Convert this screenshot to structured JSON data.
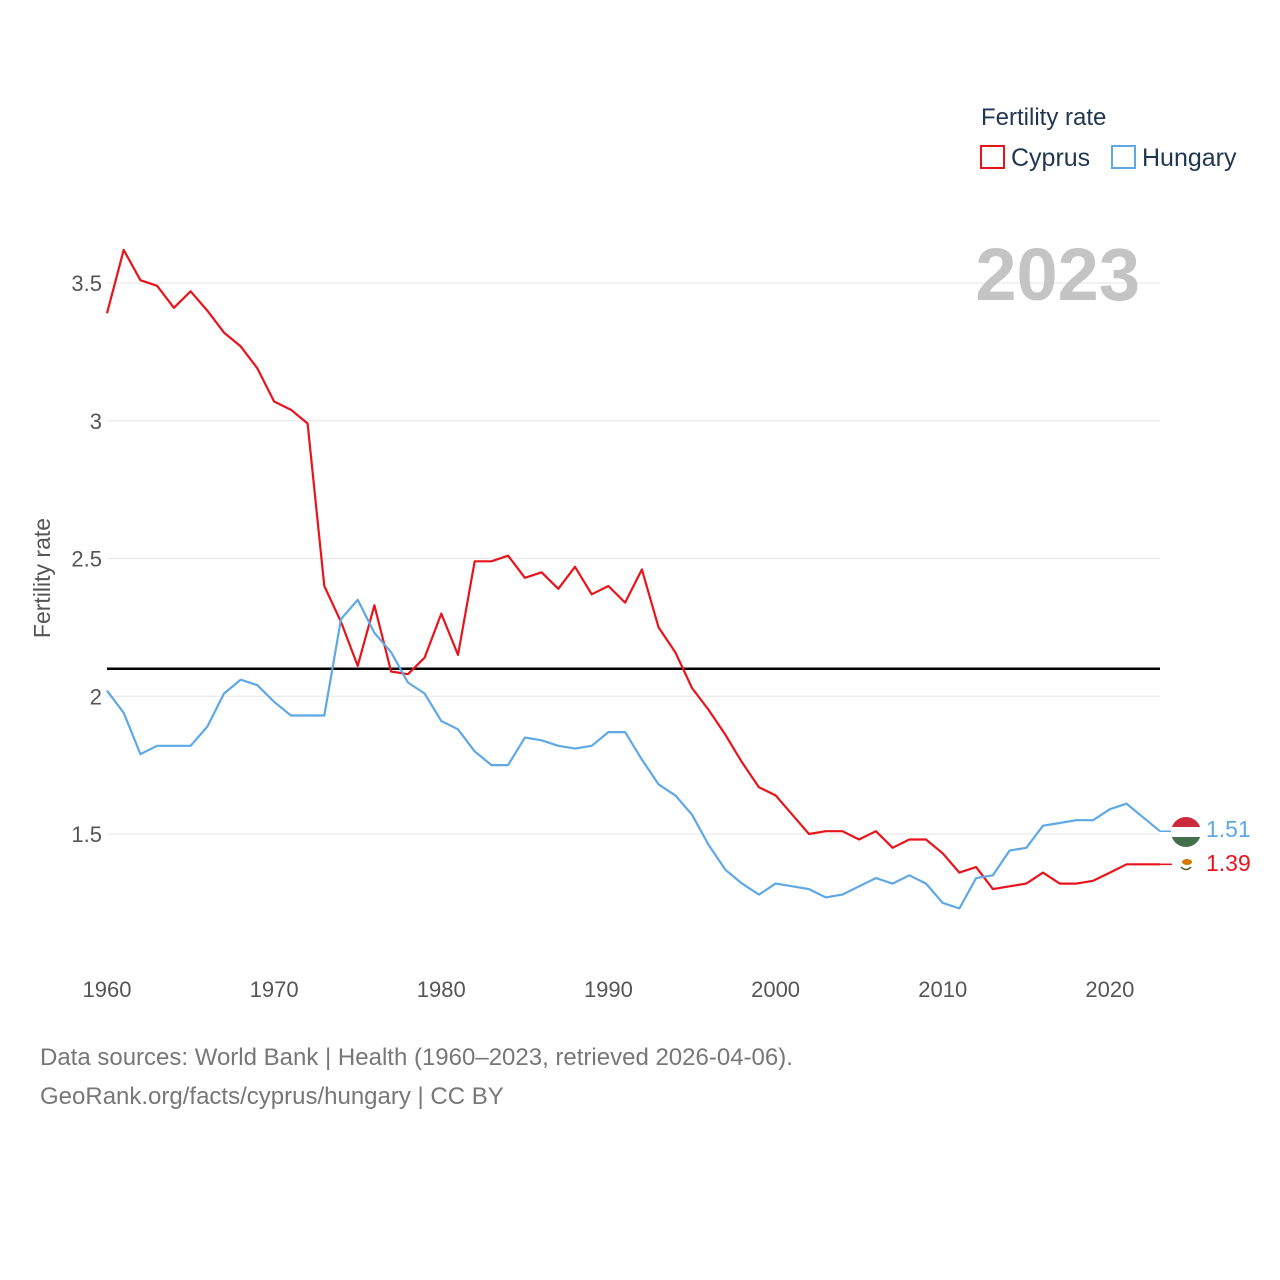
{
  "chart_data": {
    "type": "line",
    "title": "Fertility rate",
    "xlabel": "",
    "ylabel": "Fertility rate",
    "xlim": [
      1960,
      2023
    ],
    "ylim": [
      1.05,
      3.75
    ],
    "x_ticks": [
      1960,
      1970,
      1980,
      1990,
      2000,
      2010,
      2020
    ],
    "y_ticks": [
      1.5,
      2,
      2.5,
      3,
      3.5
    ],
    "y_tick_labels": [
      "1.5",
      "2",
      "2.5",
      "3",
      "3.5"
    ],
    "grid": true,
    "legend_position": "top-right",
    "current_year_label": "2023",
    "reference_line": 2.1,
    "x": [
      1960,
      1961,
      1962,
      1963,
      1964,
      1965,
      1966,
      1967,
      1968,
      1969,
      1970,
      1971,
      1972,
      1973,
      1974,
      1975,
      1976,
      1977,
      1978,
      1979,
      1980,
      1981,
      1982,
      1983,
      1984,
      1985,
      1986,
      1987,
      1988,
      1989,
      1990,
      1991,
      1992,
      1993,
      1994,
      1995,
      1996,
      1997,
      1998,
      1999,
      2000,
      2001,
      2002,
      2003,
      2004,
      2005,
      2006,
      2007,
      2008,
      2009,
      2010,
      2011,
      2012,
      2013,
      2014,
      2015,
      2016,
      2017,
      2018,
      2019,
      2020,
      2021,
      2022,
      2023
    ],
    "series": [
      {
        "name": "Cyprus",
        "color": "#e8141b",
        "end_label": "1.39",
        "values": [
          3.39,
          3.62,
          3.51,
          3.49,
          3.41,
          3.47,
          3.4,
          3.32,
          3.27,
          3.19,
          3.07,
          3.04,
          2.99,
          2.4,
          2.27,
          2.11,
          2.33,
          2.09,
          2.08,
          2.14,
          2.3,
          2.15,
          2.49,
          2.49,
          2.51,
          2.43,
          2.45,
          2.39,
          2.47,
          2.37,
          2.4,
          2.34,
          2.46,
          2.25,
          2.16,
          2.03,
          1.95,
          1.86,
          1.76,
          1.67,
          1.64,
          1.57,
          1.5,
          1.51,
          1.51,
          1.48,
          1.51,
          1.45,
          1.48,
          1.48,
          1.43,
          1.36,
          1.38,
          1.3,
          1.31,
          1.32,
          1.36,
          1.32,
          1.32,
          1.33,
          1.36,
          1.39,
          1.39,
          1.39
        ]
      },
      {
        "name": "Hungary",
        "color": "#5fa8e6",
        "end_label": "1.51",
        "values": [
          2.02,
          1.94,
          1.79,
          1.82,
          1.82,
          1.82,
          1.89,
          2.01,
          2.06,
          2.04,
          1.98,
          1.93,
          1.93,
          1.93,
          2.28,
          2.35,
          2.23,
          2.16,
          2.05,
          2.01,
          1.91,
          1.88,
          1.8,
          1.75,
          1.75,
          1.85,
          1.84,
          1.82,
          1.81,
          1.82,
          1.87,
          1.87,
          1.77,
          1.68,
          1.64,
          1.57,
          1.46,
          1.37,
          1.32,
          1.28,
          1.32,
          1.31,
          1.3,
          1.27,
          1.28,
          1.31,
          1.34,
          1.32,
          1.35,
          1.32,
          1.25,
          1.23,
          1.34,
          1.35,
          1.44,
          1.45,
          1.53,
          1.54,
          1.55,
          1.55,
          1.59,
          1.61,
          1.56,
          1.51
        ]
      }
    ]
  },
  "footer": {
    "line1": "Data sources: World Bank | Health (1960–2023, retrieved 2026-04-06).",
    "line2": "GeoRank.org/facts/cyprus/hungary | CC BY"
  }
}
